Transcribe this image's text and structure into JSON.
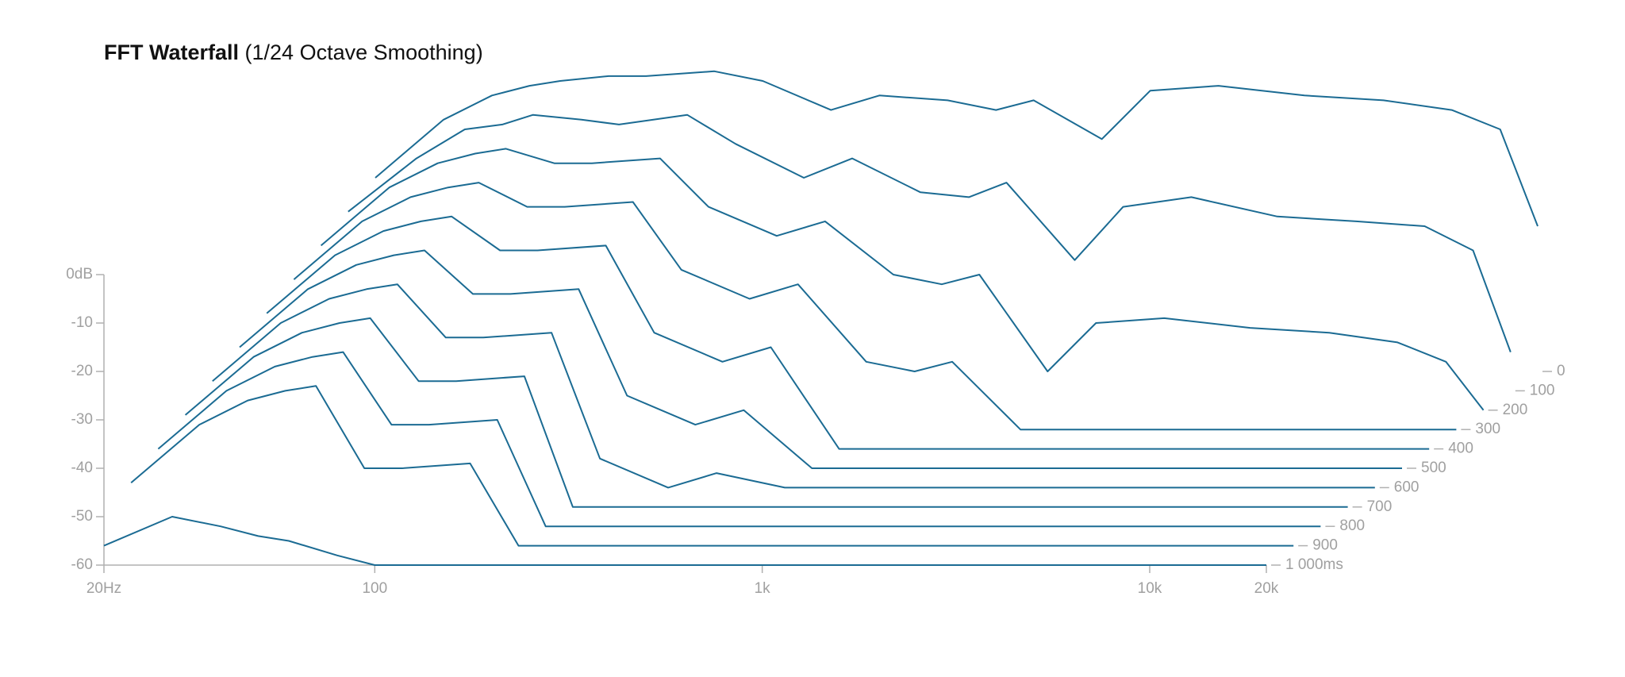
{
  "chart_data": {
    "type": "waterfall",
    "title": "FFT Waterfall",
    "subtitle": "(1/24 Octave Smoothing)",
    "color": "#1b6b93",
    "xscale": "log",
    "x": [
      20,
      30,
      40,
      50,
      60,
      80,
      100,
      150,
      200,
      300,
      400,
      600,
      800,
      1000,
      1500,
      2000,
      3000,
      5000,
      8000,
      12000,
      16000,
      20000
    ],
    "xlim": [
      20,
      20000
    ],
    "xticks": [
      {
        "value": 20,
        "label": "20Hz"
      },
      100,
      {
        "value": 1000,
        "label": "1k"
      },
      {
        "value": 10000,
        "label": "10k"
      },
      {
        "value": 20000,
        "label": "20k"
      }
    ],
    "ylim": [
      -60,
      0
    ],
    "yticks": [
      {
        "value": 0,
        "label": "0dB"
      },
      -10,
      -20,
      -30,
      -40,
      -50,
      -60
    ],
    "zlim": [
      0,
      1000
    ],
    "zticks": [
      0,
      100,
      200,
      300,
      400,
      500,
      600,
      700,
      800,
      900,
      {
        "value": 1000,
        "label": "1 000ms"
      }
    ],
    "slices": [
      {
        "t": 0,
        "values": [
          -20,
          -8,
          -3,
          -1,
          0,
          1,
          1,
          2,
          0,
          -6,
          -3,
          -4,
          -6,
          -4,
          -12,
          -2,
          -1,
          -3,
          -4,
          -6,
          -10,
          -30
        ]
      },
      {
        "t": 100,
        "values": [
          -23,
          -12,
          -6,
          -5,
          -3,
          -4,
          -5,
          -3,
          -9,
          -16,
          -12,
          -19,
          -20,
          -17,
          -33,
          -22,
          -20,
          -24,
          -25,
          -26,
          -31,
          -52
        ]
      },
      {
        "t": 200,
        "values": [
          -26,
          -14,
          -9,
          -7,
          -6,
          -9,
          -9,
          -8,
          -18,
          -24,
          -21,
          -32,
          -34,
          -32,
          -52,
          -42,
          -41,
          -43,
          -44,
          -46,
          -50,
          -60
        ]
      },
      {
        "t": 300,
        "values": [
          -29,
          -17,
          -12,
          -10,
          -9,
          -14,
          -14,
          -13,
          -27,
          -33,
          -30,
          -46,
          -48,
          -46,
          -60,
          -60,
          -60,
          -60,
          -60,
          -60,
          -60,
          -60
        ]
      },
      {
        "t": 400,
        "values": [
          -32,
          -20,
          -15,
          -13,
          -12,
          -19,
          -19,
          -18,
          -36,
          -42,
          -39,
          -60,
          -60,
          -60,
          -60,
          -60,
          -60,
          -60,
          -60,
          -60,
          -60,
          -60
        ]
      },
      {
        "t": 500,
        "values": [
          -35,
          -23,
          -18,
          -16,
          -15,
          -24,
          -24,
          -23,
          -45,
          -51,
          -48,
          -60,
          -60,
          -60,
          -60,
          -60,
          -60,
          -60,
          -60,
          -60,
          -60,
          -60
        ]
      },
      {
        "t": 600,
        "values": [
          -38,
          -26,
          -21,
          -19,
          -18,
          -29,
          -29,
          -28,
          -54,
          -60,
          -57,
          -60,
          -60,
          -60,
          -60,
          -60,
          -60,
          -60,
          -60,
          -60,
          -60,
          -60
        ]
      },
      {
        "t": 700,
        "values": [
          -41,
          -29,
          -24,
          -22,
          -21,
          -34,
          -34,
          -33,
          -60,
          -60,
          -60,
          -60,
          -60,
          -60,
          -60,
          -60,
          -60,
          -60,
          -60,
          -60,
          -60,
          -60
        ]
      },
      {
        "t": 800,
        "values": [
          -44,
          -32,
          -27,
          -25,
          -24,
          -39,
          -39,
          -38,
          -60,
          -60,
          -60,
          -60,
          -60,
          -60,
          -60,
          -60,
          -60,
          -60,
          -60,
          -60,
          -60,
          -60
        ]
      },
      {
        "t": 900,
        "values": [
          -47,
          -35,
          -30,
          -28,
          -27,
          -44,
          -44,
          -43,
          -60,
          -60,
          -60,
          -60,
          -60,
          -60,
          -60,
          -60,
          -60,
          -60,
          -60,
          -60,
          -60,
          -60
        ]
      },
      {
        "t": 1000,
        "values": [
          -56,
          -50,
          -52,
          -54,
          -55,
          -58,
          -60,
          -60,
          -60,
          -60,
          -60,
          -60,
          -60,
          -60,
          -60,
          -60,
          -60,
          -60,
          -60,
          -60,
          -60,
          -60
        ]
      }
    ]
  }
}
